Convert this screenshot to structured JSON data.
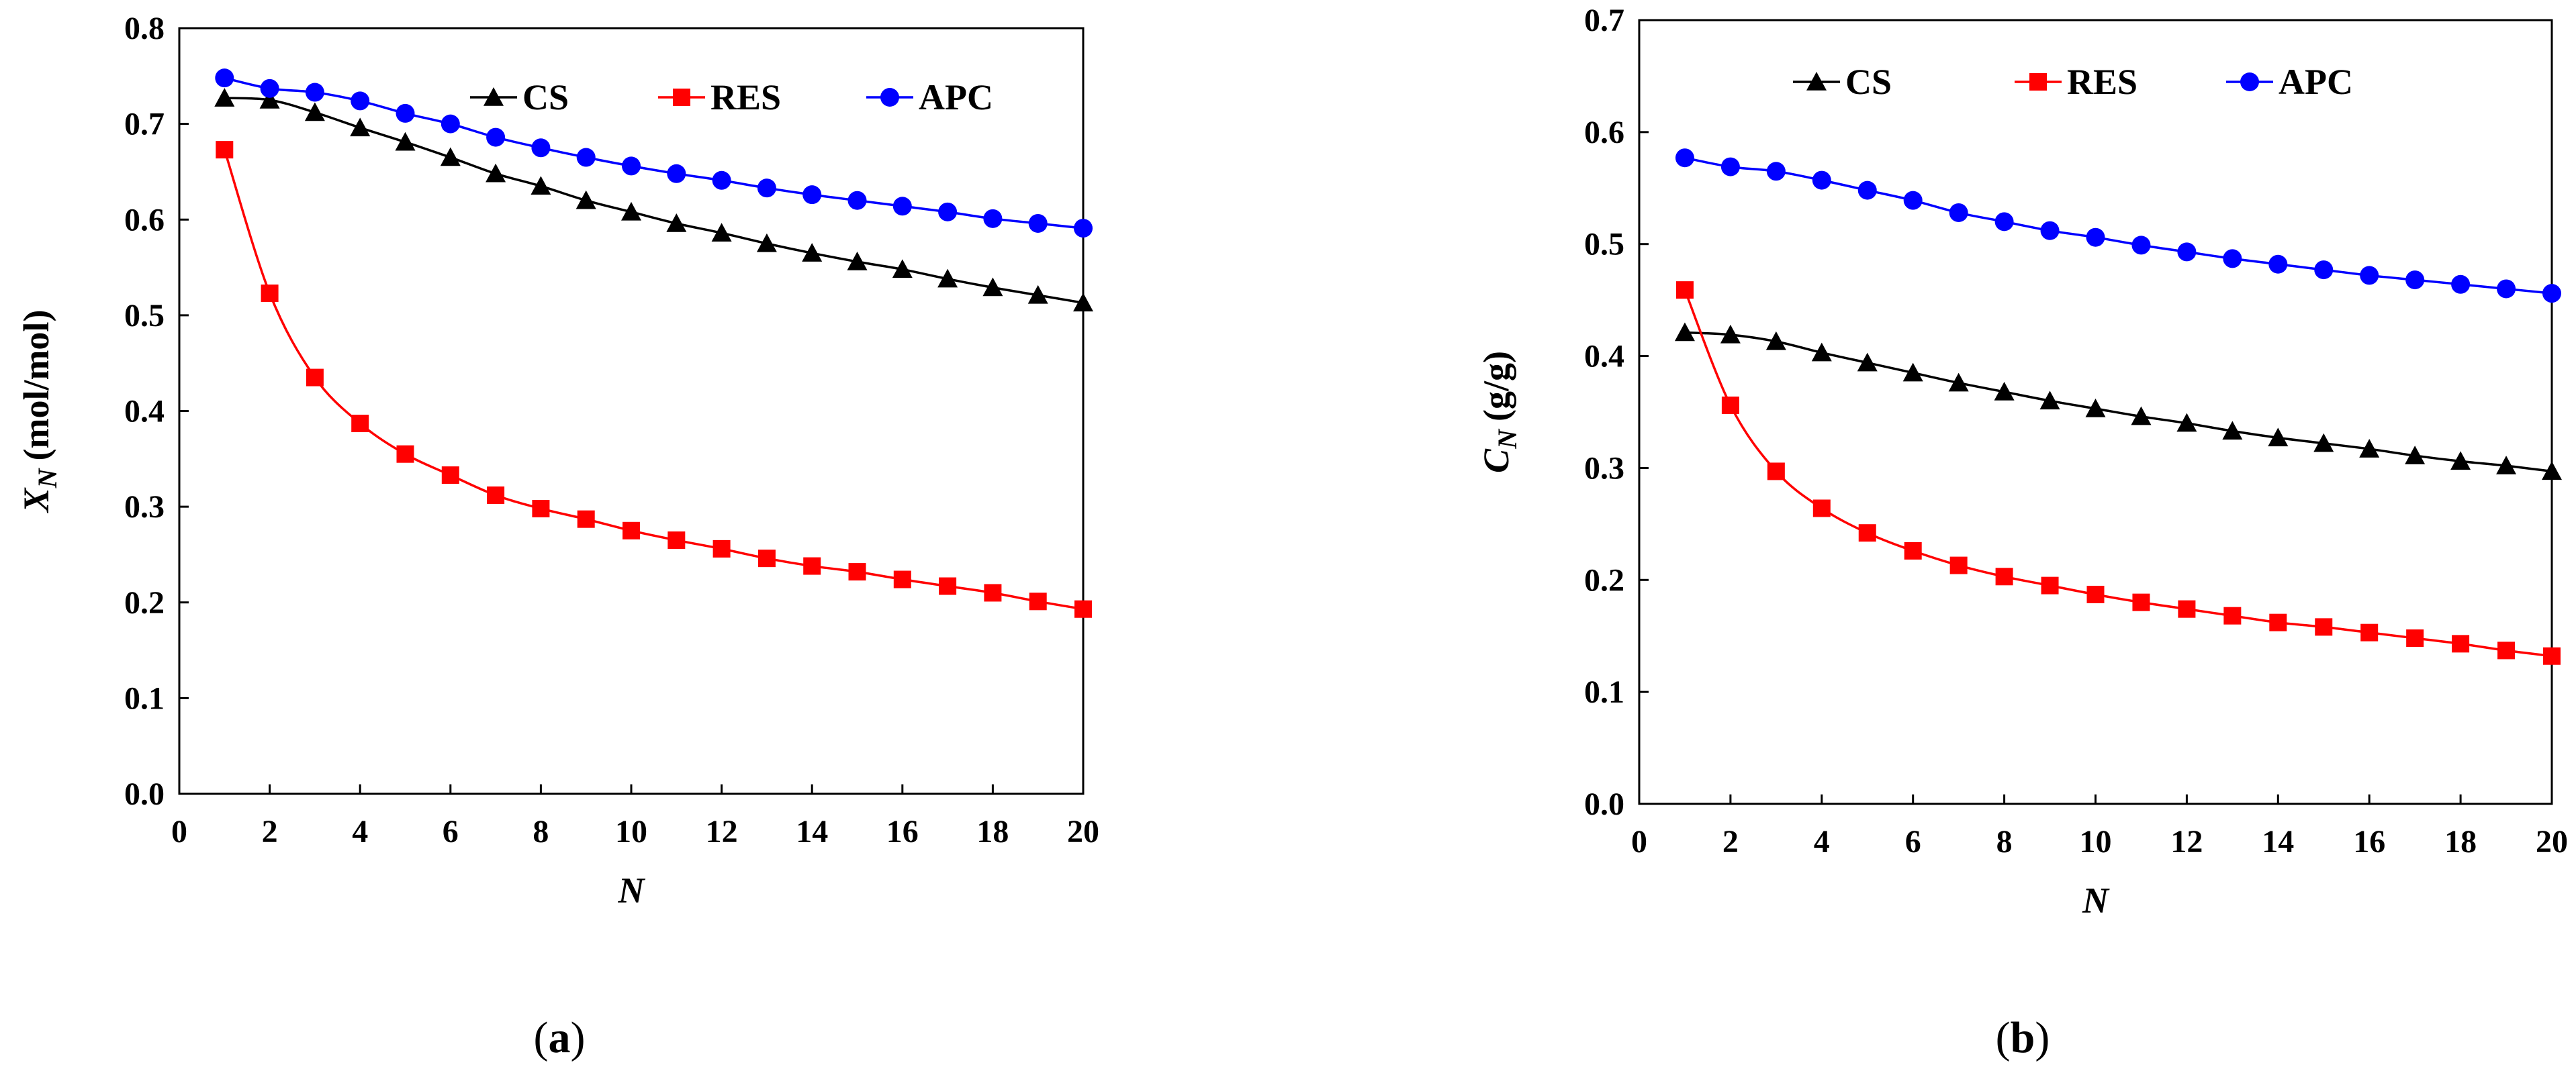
{
  "chart_data": [
    {
      "type": "line",
      "panel_label": "a",
      "xlabel": "N",
      "ylabel_main": "X",
      "ylabel_sub": "N",
      "ylabel_unit": "(mol/mol)",
      "xlim": [
        0,
        20
      ],
      "ylim": [
        0,
        0.8
      ],
      "xticks": [
        0,
        2,
        4,
        6,
        8,
        10,
        12,
        14,
        16,
        18,
        20
      ],
      "yticks": [
        0.0,
        0.1,
        0.2,
        0.3,
        0.4,
        0.5,
        0.6,
        0.7,
        0.8
      ],
      "ytick_labels": [
        "0.0",
        "0.1",
        "0.2",
        "0.3",
        "0.4",
        "0.5",
        "0.6",
        "0.7",
        "0.8"
      ],
      "legend_position": "top-right",
      "x": [
        1,
        2,
        3,
        4,
        5,
        6,
        7,
        8,
        9,
        10,
        11,
        12,
        13,
        14,
        15,
        16,
        17,
        18,
        19,
        20
      ],
      "series": [
        {
          "name": "CS",
          "color": "#000000",
          "marker": "triangle",
          "values": [
            0.727,
            0.725,
            0.712,
            0.696,
            0.681,
            0.665,
            0.648,
            0.635,
            0.62,
            0.608,
            0.596,
            0.586,
            0.575,
            0.565,
            0.556,
            0.548,
            0.538,
            0.529,
            0.521,
            0.513
          ]
        },
        {
          "name": "RES",
          "color": "#ff0000",
          "marker": "square",
          "values": [
            0.673,
            0.523,
            0.435,
            0.387,
            0.355,
            0.333,
            0.312,
            0.298,
            0.287,
            0.275,
            0.265,
            0.256,
            0.246,
            0.238,
            0.232,
            0.224,
            0.217,
            0.21,
            0.201,
            0.193
          ]
        },
        {
          "name": "APC",
          "color": "#0000ff",
          "marker": "circle",
          "values": [
            0.748,
            0.737,
            0.733,
            0.724,
            0.711,
            0.7,
            0.686,
            0.675,
            0.665,
            0.656,
            0.648,
            0.641,
            0.633,
            0.626,
            0.62,
            0.614,
            0.608,
            0.601,
            0.596,
            0.591
          ]
        }
      ]
    },
    {
      "type": "line",
      "panel_label": "b",
      "xlabel": "N",
      "ylabel_main": "C",
      "ylabel_sub": "N",
      "ylabel_unit": "(g/g)",
      "xlim": [
        0,
        20
      ],
      "ylim": [
        0,
        0.7
      ],
      "xticks": [
        0,
        2,
        4,
        6,
        8,
        10,
        12,
        14,
        16,
        18,
        20
      ],
      "yticks": [
        0.0,
        0.1,
        0.2,
        0.3,
        0.4,
        0.5,
        0.6,
        0.7
      ],
      "ytick_labels": [
        "0.0",
        "0.1",
        "0.2",
        "0.3",
        "0.4",
        "0.5",
        "0.6",
        "0.7"
      ],
      "legend_position": "top",
      "x": [
        1,
        2,
        3,
        4,
        5,
        6,
        7,
        8,
        9,
        10,
        11,
        12,
        13,
        14,
        15,
        16,
        17,
        18,
        19,
        20
      ],
      "series": [
        {
          "name": "CS",
          "color": "#000000",
          "marker": "triangle",
          "values": [
            0.421,
            0.419,
            0.413,
            0.403,
            0.394,
            0.385,
            0.376,
            0.368,
            0.36,
            0.353,
            0.346,
            0.34,
            0.333,
            0.327,
            0.322,
            0.317,
            0.311,
            0.306,
            0.302,
            0.297
          ]
        },
        {
          "name": "RES",
          "color": "#ff0000",
          "marker": "square",
          "values": [
            0.459,
            0.356,
            0.297,
            0.264,
            0.242,
            0.226,
            0.213,
            0.203,
            0.195,
            0.187,
            0.18,
            0.174,
            0.168,
            0.162,
            0.158,
            0.153,
            0.148,
            0.143,
            0.137,
            0.132
          ]
        },
        {
          "name": "APC",
          "color": "#0000ff",
          "marker": "circle",
          "values": [
            0.577,
            0.569,
            0.565,
            0.557,
            0.548,
            0.539,
            0.528,
            0.52,
            0.512,
            0.506,
            0.499,
            0.493,
            0.487,
            0.482,
            0.477,
            0.472,
            0.468,
            0.464,
            0.46,
            0.456
          ]
        }
      ]
    }
  ]
}
